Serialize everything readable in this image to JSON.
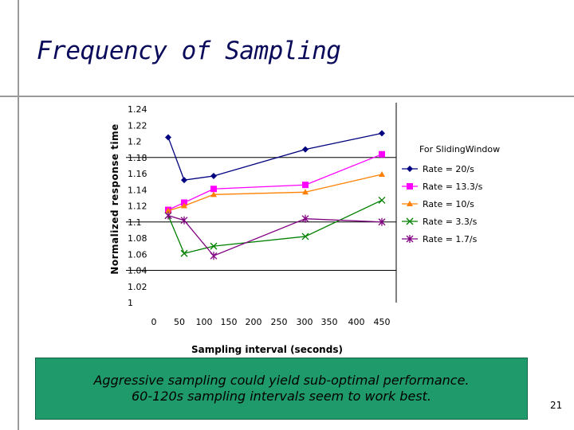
{
  "slide": {
    "title": "Frequency of Sampling",
    "caption_lines": [
      "Aggressive sampling could yield sub-optimal performance.",
      "60-120s sampling intervals seem to work best."
    ],
    "page_number": "21"
  },
  "chart_data": {
    "type": "line",
    "title": "For SlidingWindow",
    "xlabel": "Sampling interval (seconds)",
    "ylabel": "Normalized response time",
    "x_tick_labels": [
      "0",
      "50",
      "100",
      "150",
      "200",
      "250",
      "300",
      "350",
      "400",
      "450"
    ],
    "y_tick_labels": [
      "1",
      "1.02",
      "1.04",
      "1.06",
      "1.08",
      "1.1",
      "1.12",
      "1.14",
      "1.16",
      "1.18",
      "1.2",
      "1.22",
      "1.24"
    ],
    "ylim": [
      1,
      1.24
    ],
    "grid": "horizontal gridlines at 1.04, 1.1 and 1.18",
    "legend_position": "right",
    "x": [
      30,
      60,
      120,
      300,
      450
    ],
    "series": [
      {
        "name": "Rate = 20/s",
        "marker": "diamond",
        "color": "#000080",
        "values": [
          1.205,
          1.152,
          1.157,
          1.19,
          1.21
        ]
      },
      {
        "name": "Rate = 13.3/s",
        "marker": "square",
        "color": "#ff00ff",
        "values": [
          1.115,
          1.124,
          1.141,
          1.146,
          1.184
        ]
      },
      {
        "name": "Rate = 10/s",
        "marker": "triangle",
        "color": "#ff8000",
        "values": [
          1.114,
          1.12,
          1.134,
          1.137,
          1.159
        ]
      },
      {
        "name": "Rate = 3.3/s",
        "marker": "x",
        "color": "#008000",
        "values": [
          1.108,
          1.061,
          1.07,
          1.082,
          1.127
        ]
      },
      {
        "name": "Rate = 1.7/s",
        "marker": "star",
        "color": "#800080",
        "values": [
          1.108,
          1.102,
          1.058,
          1.104,
          1.1
        ]
      }
    ]
  }
}
